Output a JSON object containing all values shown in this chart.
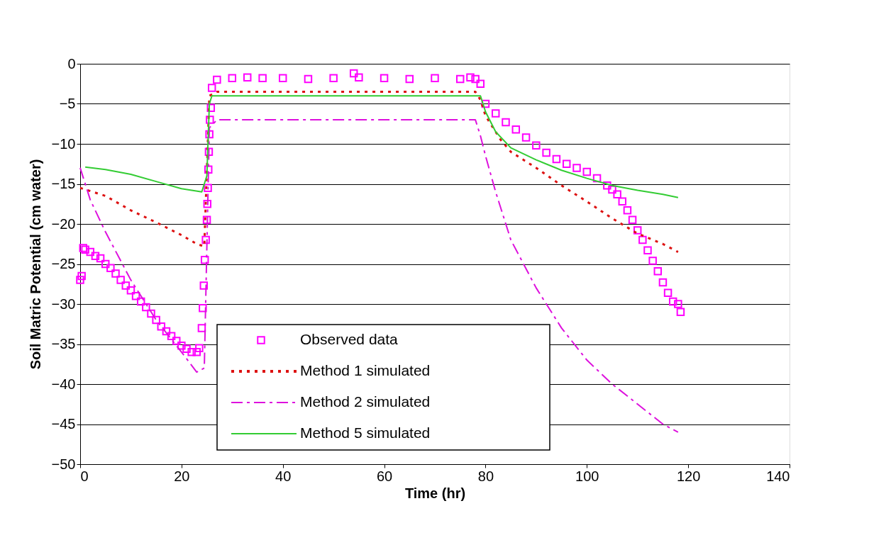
{
  "chart_data": {
    "type": "line",
    "xlabel": "Time (hr)",
    "ylabel": "Soil Matric Potential (cm water)",
    "xlim": [
      0,
      140
    ],
    "xticks": [
      0,
      20,
      40,
      60,
      80,
      100,
      120,
      140
    ],
    "ylim": [
      -50,
      0
    ],
    "yticks": [
      -50,
      -45,
      -40,
      -35,
      -30,
      -25,
      -20,
      -15,
      -10,
      -5,
      0
    ],
    "grid": "y",
    "legend": "bottom",
    "series": [
      {
        "name": "Observed data",
        "type": "scatter",
        "marker": "square",
        "color": "#ff00ff",
        "x": [
          0,
          0.3,
          0.6,
          1,
          2,
          3,
          4,
          5,
          6,
          7,
          8,
          9,
          10,
          11,
          12,
          13,
          14,
          15,
          16,
          17,
          18,
          19,
          20,
          21,
          22,
          23,
          23.5,
          24,
          24.2,
          24.4,
          24.6,
          24.8,
          25,
          25.1,
          25.2,
          25.3,
          25.4,
          25.5,
          25.6,
          25.8,
          26,
          27,
          30,
          33,
          36,
          40,
          45,
          50,
          54,
          55,
          60,
          65,
          70,
          75,
          77,
          78,
          79,
          80,
          82,
          84,
          86,
          88,
          90,
          92,
          94,
          96,
          98,
          100,
          102,
          104,
          105,
          106,
          107,
          108,
          109,
          110,
          111,
          112,
          113,
          114,
          115,
          116,
          117,
          118,
          118.5
        ],
        "values": [
          -27,
          -26.5,
          -23,
          -23.2,
          -23.5,
          -24,
          -24.3,
          -25,
          -25.5,
          -26.2,
          -27,
          -27.7,
          -28.3,
          -29,
          -29.7,
          -30.4,
          -31.2,
          -32,
          -32.8,
          -33.4,
          -34,
          -34.6,
          -35.2,
          -35.6,
          -36,
          -36,
          -35.5,
          -33,
          -30.5,
          -27.7,
          -24.5,
          -22,
          -19.5,
          -17.5,
          -15.5,
          -13.2,
          -11,
          -8.8,
          -7,
          -5.5,
          -3,
          -2,
          -1.8,
          -1.7,
          -1.8,
          -1.8,
          -1.9,
          -1.8,
          -1.2,
          -1.7,
          -1.8,
          -1.9,
          -1.8,
          -1.9,
          -1.7,
          -1.9,
          -2.5,
          -5,
          -6.2,
          -7.3,
          -8.2,
          -9.2,
          -10.2,
          -11.1,
          -11.9,
          -12.5,
          -13,
          -13.5,
          -14.3,
          -15.2,
          -15.7,
          -16.3,
          -17.2,
          -18.3,
          -19.5,
          -20.8,
          -22,
          -23.3,
          -24.6,
          -25.9,
          -27.3,
          -28.6,
          -29.7,
          -30,
          -31
        ]
      },
      {
        "name": "Method 1 simulated",
        "type": "line",
        "line_style": "dotted",
        "color": "#dd1111",
        "x": [
          0,
          5,
          10,
          15,
          20,
          23,
          24.5,
          25.5,
          27,
          40,
          60,
          78,
          79,
          80,
          83,
          85,
          90,
          95,
          100,
          105,
          110,
          115,
          118
        ],
        "values": [
          -15.5,
          -16.5,
          -18.3,
          -19.8,
          -21.4,
          -22.5,
          -22.8,
          -4,
          -3.5,
          -3.5,
          -3.5,
          -3.5,
          -4.5,
          -6.5,
          -9.5,
          -11,
          -13,
          -15.2,
          -17.2,
          -19.3,
          -21.2,
          -22.5,
          -23.5
        ]
      },
      {
        "name": "Method 2 simulated",
        "type": "line",
        "line_style": "dashdot",
        "color": "#dd11dd",
        "x": [
          0,
          2,
          5,
          10,
          15,
          20,
          23,
          24.5,
          25.5,
          27,
          40,
          60,
          78,
          79,
          80,
          82,
          85,
          90,
          95,
          100,
          105,
          110,
          115,
          118
        ],
        "values": [
          -13,
          -17,
          -21,
          -27,
          -32,
          -36,
          -38.5,
          -38,
          -8,
          -7,
          -7,
          -7,
          -7,
          -9,
          -11.5,
          -16,
          -22,
          -28,
          -33,
          -37,
          -40,
          -42.5,
          -45,
          -46
        ]
      },
      {
        "name": "Method 5 simulated",
        "type": "line",
        "line_style": "solid",
        "color": "#33cc33",
        "x": [
          1,
          5,
          10,
          15,
          20,
          24,
          25,
          25.5,
          26,
          40,
          60,
          79,
          80,
          82,
          85,
          90,
          95,
          100,
          105,
          110,
          115,
          118
        ],
        "values": [
          -12.9,
          -13.2,
          -13.8,
          -14.7,
          -15.6,
          -16,
          -14,
          -5,
          -4,
          -4,
          -4,
          -4,
          -6,
          -8.5,
          -10.5,
          -12,
          -13.3,
          -14.3,
          -15.2,
          -15.8,
          -16.3,
          -16.7
        ]
      }
    ]
  }
}
